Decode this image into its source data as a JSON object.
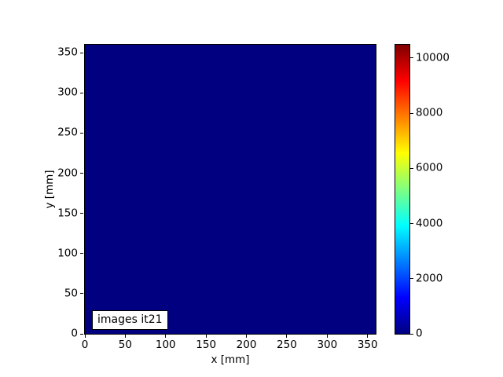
{
  "chart_data": {
    "type": "heatmap",
    "title": "",
    "xlabel": "x [mm]",
    "ylabel": "y [mm]",
    "xlim": [
      0,
      360
    ],
    "ylim": [
      0,
      360
    ],
    "x_ticks": [
      0,
      50,
      100,
      150,
      200,
      250,
      300,
      350
    ],
    "y_ticks": [
      0,
      50,
      100,
      150,
      200,
      250,
      300,
      350
    ],
    "grid": false,
    "annotation": "images it21",
    "uniform_value": 0,
    "values_description": "uniform field of ~0 over the whole 0-360 mm x 0-360 mm extent; entire image rendered at the colormap minimum (navy blue)",
    "fill_color": "#000080",
    "colormap": "jet",
    "colorbar": {
      "vmin": 0,
      "vmax": 10484,
      "ticks": [
        0,
        2000,
        4000,
        6000,
        8000,
        10000
      ],
      "legend_position": "right",
      "gradient_stops": [
        {
          "pos": 0,
          "color": "#000080"
        },
        {
          "pos": 12.5,
          "color": "#0000ff"
        },
        {
          "pos": 37.5,
          "color": "#00ffff"
        },
        {
          "pos": 62.5,
          "color": "#ffff00"
        },
        {
          "pos": 87.5,
          "color": "#ff0000"
        },
        {
          "pos": 100,
          "color": "#800000"
        }
      ]
    }
  },
  "colors": {
    "figure_background": "#ffffff",
    "spine": "#000000",
    "text": "#000000",
    "annotation_background": "#ffffff",
    "annotation_border": "#000000"
  }
}
